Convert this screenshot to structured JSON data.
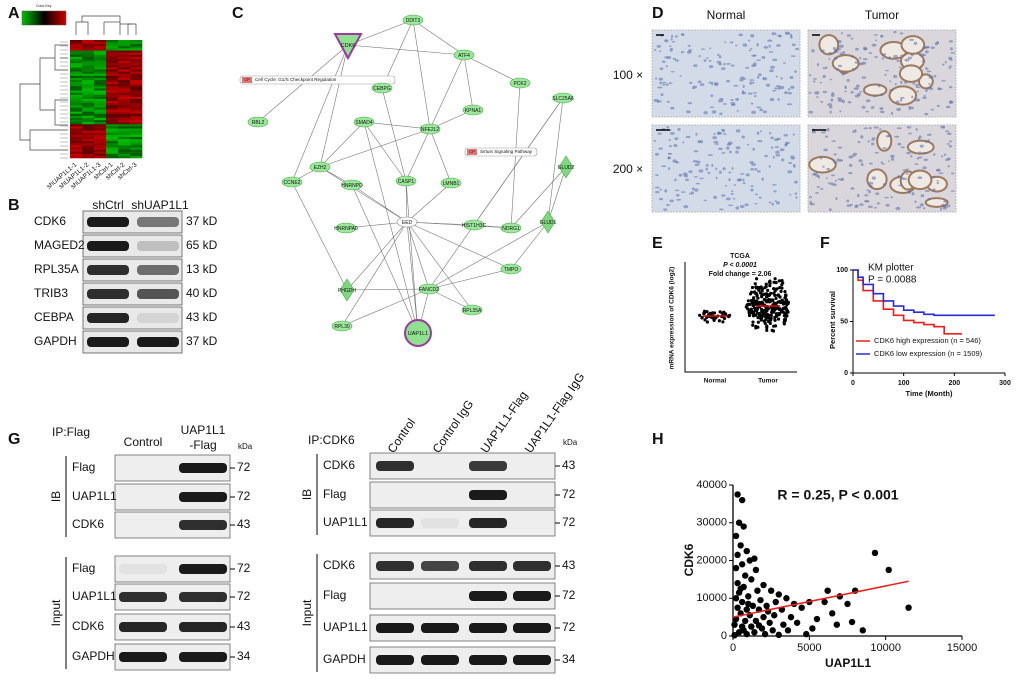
{
  "panels": [
    "A",
    "B",
    "C",
    "D",
    "E",
    "F",
    "G",
    "H"
  ],
  "heatmap": {
    "title": "Color Key",
    "samples": [
      "shUAP1L1-1",
      "shUAP1L1-2",
      "shUAP1L1-3",
      "shCtrl-1",
      "shCtrl-2",
      "shCtrl-3"
    ]
  },
  "blot_b": {
    "columns": [
      "shCtrl",
      "shUAP1L1"
    ],
    "rows": [
      [
        "CDK6",
        "37 kD"
      ],
      [
        "MAGED2",
        "65 kD"
      ],
      [
        "RPL35A",
        "13 kD"
      ],
      [
        "TRIB3",
        "40 kD"
      ],
      [
        "CEBPA",
        "43 kD"
      ],
      [
        "GAPDH",
        "37 kD"
      ]
    ]
  },
  "network": {
    "nodes": [
      "DDIT3",
      "CDK6",
      "ATF4",
      "CEBPG",
      "PCK2",
      "SLC25A6",
      "KPNA1",
      "RBL2",
      "SMAD4",
      "NFE2L2",
      "GLUD2",
      "EZH2",
      "CCNE2",
      "HNRNPD",
      "CASP1",
      "LMNB1",
      "EED",
      "HNRNPA0",
      "HIST1H3C",
      "NDRG1",
      "GLUD1",
      "TMPO",
      "PHGDH",
      "FANCD2",
      "RPL35A",
      "RPL30",
      "UAP1L1"
    ],
    "pathways": [
      {
        "tag": "CP",
        "label": "Cell Cycle: G1/S Checkpoint Regulation"
      },
      {
        "tag": "CP",
        "label": "Sirtuin Signaling Pathway"
      }
    ]
  },
  "ihc": {
    "columns": [
      "Normal",
      "Tumor"
    ],
    "rows": [
      "100 ×",
      "200 ×"
    ]
  },
  "tcga": {
    "title": "TCGA",
    "p_value": "P < 0.0001",
    "fold_change": "Fold change = 2.06",
    "y_label": "mRNA expression of CDK6 (log2)",
    "categories": [
      "Normal",
      "Tumor"
    ]
  },
  "blot_g": {
    "left": {
      "title": "IP:Flag",
      "columns": [
        [
          "Control"
        ],
        [
          "UAP1L1",
          "-Flag"
        ]
      ],
      "unit": "kDa",
      "groups": [
        {
          "name": "IB",
          "rows": [
            [
              "Flag",
              "72"
            ],
            [
              "UAP1L1",
              "72"
            ],
            [
              "CDK6",
              "43"
            ]
          ]
        },
        {
          "name": "Input",
          "rows": [
            [
              "Flag",
              "72"
            ],
            [
              "UAP1L1",
              "72"
            ],
            [
              "CDK6",
              "43"
            ],
            [
              "GAPDH",
              "34"
            ]
          ]
        }
      ]
    },
    "right": {
      "title": "IP:CDK6",
      "columns": [
        [
          "Control"
        ],
        [
          "Control IgG"
        ],
        [
          "UAP1L1-Flag"
        ],
        [
          "UAP1L1-Flag IgG"
        ]
      ],
      "unit": "kDa",
      "groups": [
        {
          "name": "IB",
          "rows": [
            [
              "CDK6",
              "43"
            ],
            [
              "Flag",
              "72"
            ],
            [
              "UAP1L1",
              "72"
            ]
          ]
        },
        {
          "name": "Input",
          "rows": [
            [
              "CDK6",
              "43"
            ],
            [
              "Flag",
              "72"
            ],
            [
              "UAP1L1",
              "72"
            ],
            [
              "GAPDH",
              "34"
            ]
          ]
        }
      ]
    }
  },
  "chart_data": [
    {
      "type": "line",
      "step": true,
      "title": "KM plotter",
      "annotation": "P = 0.0088",
      "x_label": "Time (Month)",
      "y_label": "Percent survival",
      "x": [
        0,
        10,
        20,
        40,
        60,
        80,
        100,
        120,
        140,
        160,
        175,
        180,
        200,
        215,
        240,
        260,
        280
      ],
      "series": [
        {
          "name": "CDK6 high expression (n = 546)",
          "color": "#e8201c",
          "values": [
            100,
            90,
            80,
            70,
            62,
            56,
            51,
            49,
            47,
            45,
            45,
            38,
            38,
            38,
            null,
            null,
            null
          ]
        },
        {
          "name": "CDK6 low expression (n = 1509)",
          "color": "#2b2bd6",
          "values": [
            100,
            93,
            86,
            77,
            70,
            65,
            61,
            59,
            57,
            56,
            56,
            56,
            56,
            56,
            56,
            56,
            56
          ]
        }
      ],
      "xlim": [
        0,
        300
      ],
      "xticks": [
        0,
        100,
        200,
        300
      ],
      "ylim": [
        0,
        100
      ],
      "yticks": [
        0,
        50,
        100
      ]
    },
    {
      "type": "scatter",
      "annotation": "R = 0.25, P < 0.001",
      "x_label": "UAP1L1",
      "y_label": "CDK6",
      "color": "#000000",
      "x": [
        300,
        600,
        400,
        700,
        200,
        500,
        900,
        300,
        1100,
        600,
        200,
        1500,
        800,
        1200,
        300,
        2000,
        700,
        1600,
        2500,
        400,
        3000,
        1000,
        3500,
        200,
        1800,
        2800,
        600,
        4000,
        1300,
        2200,
        5000,
        300,
        900,
        1700,
        3200,
        4500,
        6000,
        7000,
        8000,
        9300,
        10200,
        11500,
        7500,
        6500,
        5500,
        500,
        1100,
        2000,
        2700,
        3800,
        200,
        800,
        1500,
        2400,
        3300,
        4200,
        100,
        600,
        1200,
        1900,
        2600,
        3600,
        5200,
        6800,
        400,
        900,
        1400,
        2100,
        3000,
        4800,
        8500,
        100,
        700,
        1700,
        2300,
        1000,
        500,
        1400,
        7800,
        6200
      ],
      "values": [
        37500,
        36000,
        30000,
        29000,
        26500,
        24000,
        22500,
        21500,
        20000,
        19000,
        18000,
        17500,
        16000,
        15000,
        14000,
        13500,
        13000,
        12000,
        12000,
        11500,
        11000,
        10500,
        10000,
        10000,
        9500,
        9000,
        9000,
        8500,
        8000,
        8000,
        9000,
        7500,
        7000,
        7000,
        7000,
        7500,
        9000,
        10500,
        12000,
        22000,
        17500,
        7500,
        8500,
        6000,
        4500,
        6000,
        5500,
        5000,
        5500,
        5000,
        4500,
        4000,
        4000,
        3500,
        3000,
        3500,
        3000,
        2500,
        2500,
        2000,
        1500,
        1500,
        2000,
        3000,
        1000,
        500,
        1000,
        500,
        300,
        500,
        1500,
        200,
        1500,
        2800,
        6500,
        8500,
        12500,
        20500,
        3700,
        12000
      ],
      "trend": {
        "x": [
          0,
          11500
        ],
        "values": [
          5000,
          14500
        ],
        "color": "#e8201c"
      },
      "xlim": [
        0,
        15000
      ],
      "xticks": [
        0,
        5000,
        10000,
        15000
      ],
      "ylim": [
        0,
        40000
      ],
      "yticks": [
        0,
        10000,
        20000,
        30000,
        40000
      ]
    }
  ]
}
